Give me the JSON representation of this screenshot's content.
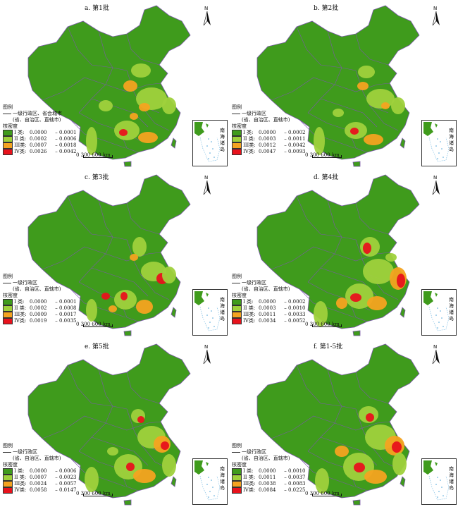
{
  "colors": {
    "background": "#3f9b1c",
    "class_I": "#3f9b1c",
    "class_II": "#9fd13c",
    "class_III": "#f4a320",
    "class_IV": "#e8121c",
    "boundary": "#7a5aa8"
  },
  "north_label": "N",
  "scale_label": "0   300  600 km",
  "inset_label": "南海诸岛",
  "panels": [
    {
      "title": "a. 第1批",
      "legend_title": "图例",
      "legend_boundary_label": "一级行政区、省会城市",
      "legend_boundary_sub": "(省、自治区、直辖市)",
      "legend_kernel_title": "核密度",
      "classes": [
        {
          "name": "I 类:",
          "from": "0.0000",
          "to": "0.0001"
        },
        {
          "name": "II 类:",
          "from": "0.0002",
          "to": "0.0006"
        },
        {
          "name": "III类:",
          "from": "0.0007",
          "to": "0.0018"
        },
        {
          "name": "IV类:",
          "from": "0.0026",
          "to": "0.0042"
        }
      ]
    },
    {
      "title": "b. 第2批",
      "legend_title": "图例",
      "legend_boundary_label": "一级行政区",
      "legend_boundary_sub": "(省、自治区、直辖市)",
      "legend_kernel_title": "核密度",
      "classes": [
        {
          "name": "I 类:",
          "from": "0.0000",
          "to": "0.0002"
        },
        {
          "name": "II 类:",
          "from": "0.0003",
          "to": "0.0011"
        },
        {
          "name": "III类:",
          "from": "0.0012",
          "to": "0.0042"
        },
        {
          "name": "IV类:",
          "from": "0.0047",
          "to": "0.0093"
        }
      ]
    },
    {
      "title": "c. 第3批",
      "legend_title": "图例",
      "legend_boundary_label": "一级行政区",
      "legend_boundary_sub": "(省、自治区、直辖市)",
      "legend_kernel_title": "核密度",
      "classes": [
        {
          "name": "I 类:",
          "from": "0.0000",
          "to": "0.0001"
        },
        {
          "name": "II 类:",
          "from": "0.0002",
          "to": "0.0008"
        },
        {
          "name": "III类:",
          "from": "0.0009",
          "to": "0.0017"
        },
        {
          "name": "IV类:",
          "from": "0.0019",
          "to": "0.0035"
        }
      ]
    },
    {
      "title": "d. 第4批",
      "legend_title": "图例",
      "legend_boundary_label": "一级行政区",
      "legend_boundary_sub": "(省、自治区、直辖市)",
      "legend_kernel_title": "核密度",
      "classes": [
        {
          "name": "I 类:",
          "from": "0.0000",
          "to": "0.0002"
        },
        {
          "name": "II 类:",
          "from": "0.0003",
          "to": "0.0010"
        },
        {
          "name": "III类:",
          "from": "0.0011",
          "to": "0.0033"
        },
        {
          "name": "IV类:",
          "from": "0.0034",
          "to": "0.0052"
        }
      ]
    },
    {
      "title": "e. 第5批",
      "legend_title": "图例",
      "legend_boundary_label": "一级行政区",
      "legend_boundary_sub": "(省、自治区、直辖市)",
      "legend_kernel_title": "核密度",
      "classes": [
        {
          "name": "I 类:",
          "from": "0.0000",
          "to": "0.0006"
        },
        {
          "name": "II 类:",
          "from": "0.0007",
          "to": "0.0023"
        },
        {
          "name": "III类:",
          "from": "0.0024",
          "to": "0.0057"
        },
        {
          "name": "IV类:",
          "from": "0.0058",
          "to": "0.0147"
        }
      ]
    },
    {
      "title": "f. 第1-5批",
      "legend_title": "图例",
      "legend_boundary_label": "一级行政区",
      "legend_boundary_sub": "(省、自治区、直辖市)",
      "legend_kernel_title": "核密度",
      "classes": [
        {
          "name": "I 类:",
          "from": "0.0000",
          "to": "0.0010"
        },
        {
          "name": "II 类:",
          "from": "0.0011",
          "to": "0.0037"
        },
        {
          "name": "III类:",
          "from": "0.0038",
          "to": "0.0083"
        },
        {
          "name": "IV类:",
          "from": "0.0084",
          "to": "0.0225"
        }
      ]
    }
  ]
}
